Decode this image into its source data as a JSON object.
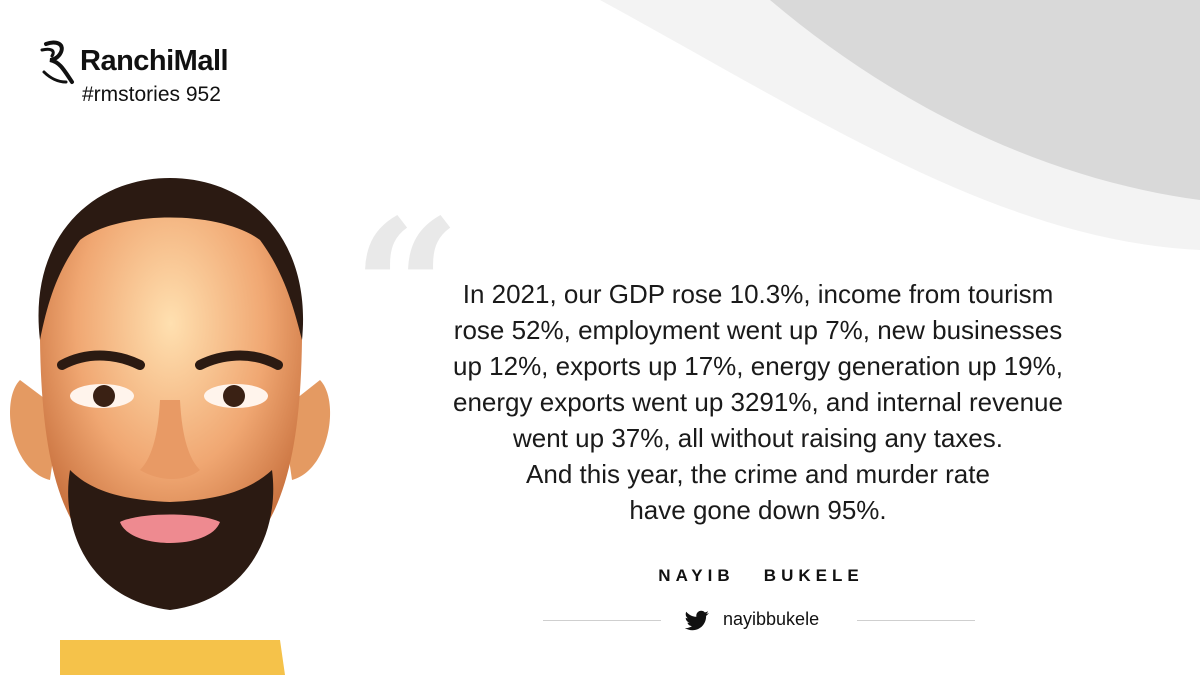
{
  "brand": {
    "name": "RanchiMall",
    "tag": "#rmstories 952",
    "logo_icon": "ranchimall-swirl-logo"
  },
  "quote": {
    "lines": [
      "In 2021, our GDP rose 10.3%, income from tourism",
      "rose 52%, employment went up 7%, new businesses",
      "up 12%, exports up 17%, energy generation up 19%,",
      "energy exports went up 3291%, and internal revenue",
      "went up 37%, all without raising any taxes.",
      "And this year, the crime and murder rate",
      "have gone down 95%."
    ]
  },
  "author": {
    "name": "NAYIB   BUKELE",
    "handle": "nayibbukele",
    "handle_icon": "twitter-bird-icon"
  },
  "colors": {
    "background": "#ffffff",
    "accent_gray": "#d7d7d7",
    "text": "#1a1a1a"
  }
}
